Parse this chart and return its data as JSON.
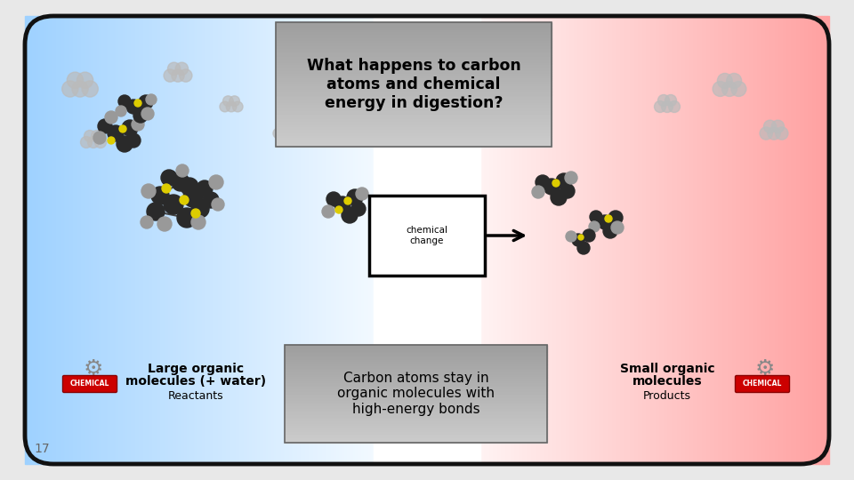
{
  "bg_color": "#e8e8e8",
  "outer_box_facecolor": "#ffffff",
  "outer_box_edgecolor": "#111111",
  "title_text": "What happens to carbon\natoms and chemical\nenergy in digestion?",
  "title_box_color_top": "#888888",
  "title_box_color_bottom": "#aaaaaa",
  "title_text_color": "#000000",
  "bottom_center_text": "Carbon atoms stay in\norganic molecules with\nhigh-energy bonds",
  "bottom_left_label": "Large organic\nmolecules (+ water)",
  "bottom_left_sublabel": "Reactants",
  "bottom_right_label": "Small organic\nmolecules",
  "bottom_right_sublabel": "Products",
  "slide_number": "17",
  "chemical_change_label": "chemical\nchange",
  "molecule_dark_color": "#2a2a2a",
  "molecule_gray_color": "#999999",
  "molecule_yellow_color": "#ddcc00",
  "left_blue_strong": "#9fcfef",
  "right_red_strong": "#f0a0a0",
  "center_white": "#ffffff"
}
